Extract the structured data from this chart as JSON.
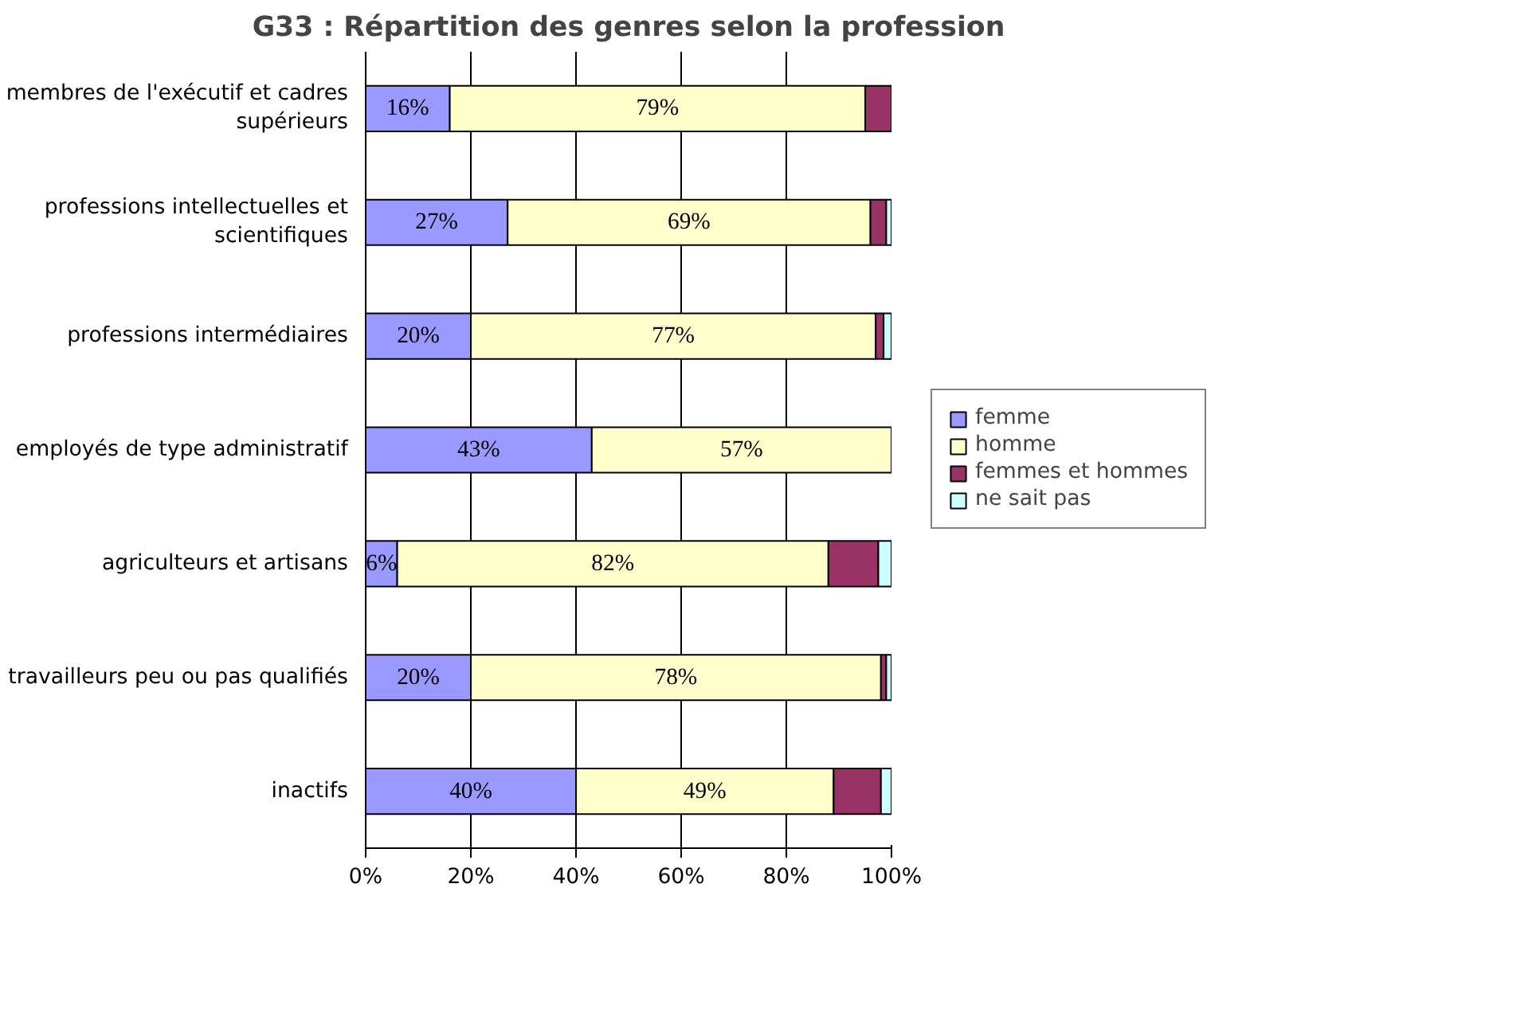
{
  "chart_data": {
    "type": "bar",
    "orientation": "horizontal",
    "stacked": true,
    "title": "G33 : Répartition des genres selon la profession",
    "categories": [
      "membres de l'exécutif et cadres supérieurs",
      "professions intellectuelles et scientifiques",
      "professions intermédiaires",
      "employés de type administratif",
      "agriculteurs et artisans",
      "travailleurs peu ou pas qualifiés",
      "inactifs"
    ],
    "series": [
      {
        "name": "femme",
        "color": "#9999ff",
        "values": [
          16,
          27,
          20,
          43,
          6,
          20,
          40
        ],
        "value_labels": [
          "16%",
          "27%",
          "20%",
          "43%",
          "6%",
          "20%",
          "40%"
        ]
      },
      {
        "name": "homme",
        "color": "#ffffcc",
        "values": [
          79,
          69,
          77,
          57,
          82,
          78,
          49
        ],
        "value_labels": [
          "79%",
          "69%",
          "77%",
          "57%",
          "82%",
          "78%",
          "49%"
        ]
      },
      {
        "name": "femmes et hommes",
        "color": "#993366",
        "values": [
          5,
          3,
          1.5,
          0,
          9.5,
          1,
          9
        ]
      },
      {
        "name": "ne sait pas",
        "color": "#ccffff",
        "values": [
          0,
          1,
          1.5,
          0,
          2.5,
          1,
          2
        ]
      }
    ],
    "xlim": [
      0,
      100
    ],
    "xticks": [
      {
        "value": 0,
        "label": "0%"
      },
      {
        "value": 20,
        "label": "20%"
      },
      {
        "value": 40,
        "label": "40%"
      },
      {
        "value": 60,
        "label": "60%"
      },
      {
        "value": 80,
        "label": "80%"
      },
      {
        "value": 100,
        "label": "100%"
      }
    ],
    "grid": "x",
    "legend": "right"
  }
}
